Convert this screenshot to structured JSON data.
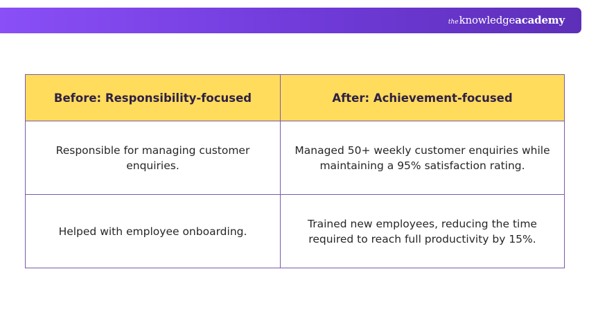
{
  "brand": {
    "the": "the",
    "knowledge": "knowledge",
    "academy": "academy"
  },
  "table": {
    "headers": [
      "Before: Responsibility-focused",
      "After: Achievement-focused"
    ],
    "rows": [
      [
        "Responsible for managing customer enquiries.",
        "Managed 50+ weekly customer enquiries while maintaining a 95% satisfaction rating."
      ],
      [
        "Helped with employee onboarding.",
        "Trained new employees, reducing the time required to reach full productivity by 15%."
      ]
    ]
  },
  "colors": {
    "banner_start": "#8a4ff7",
    "banner_end": "#5d2fb8",
    "header_fill": "#ffdc5c",
    "border": "#7b5aa6",
    "header_text": "#2f2145"
  }
}
